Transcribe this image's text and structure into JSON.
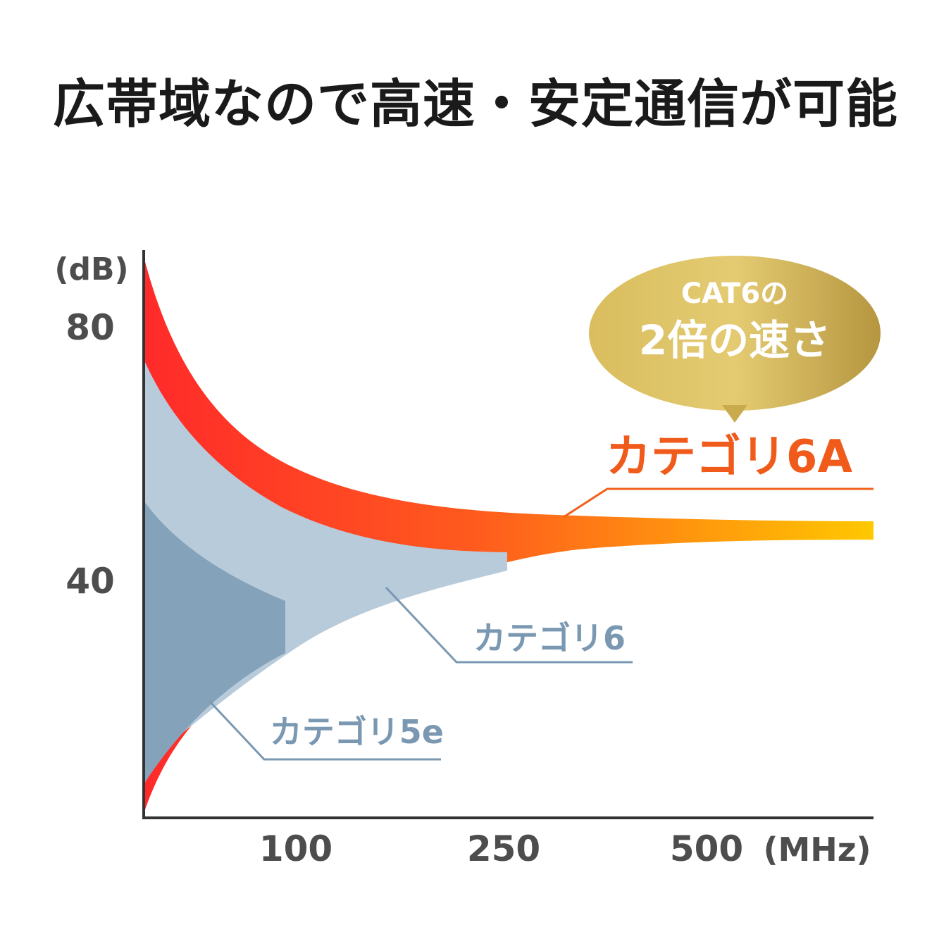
{
  "header": {
    "title": "広帯域なので高速・安定通信が可能"
  },
  "badge": {
    "line1": "CAT6の",
    "line2": "2倍の速さ"
  },
  "colors": {
    "cat6a_start": "#ff2a2a",
    "cat6a_end": "#ffc800",
    "cat6a_label": "#f05a1a",
    "cat6_fill": "#b8cbdb",
    "cat5e_fill": "#84a3bb",
    "cat_label": "#7a98b2",
    "badge_gold": "#c9a94a",
    "axis": "#333333"
  },
  "chart_data": {
    "type": "area",
    "y_unit": "(dB)",
    "x_unit": "(MHz)",
    "y_ticks": [
      "80",
      "40"
    ],
    "x_ticks": [
      "100",
      "250",
      "500"
    ],
    "series": [
      {
        "name": "カテゴリ6A",
        "max_frequency": 500
      },
      {
        "name": "カテゴリ6",
        "max_frequency": 250
      },
      {
        "name": "カテゴリ5e",
        "max_frequency": 100
      }
    ],
    "grid": false,
    "legend": "callout labels"
  }
}
